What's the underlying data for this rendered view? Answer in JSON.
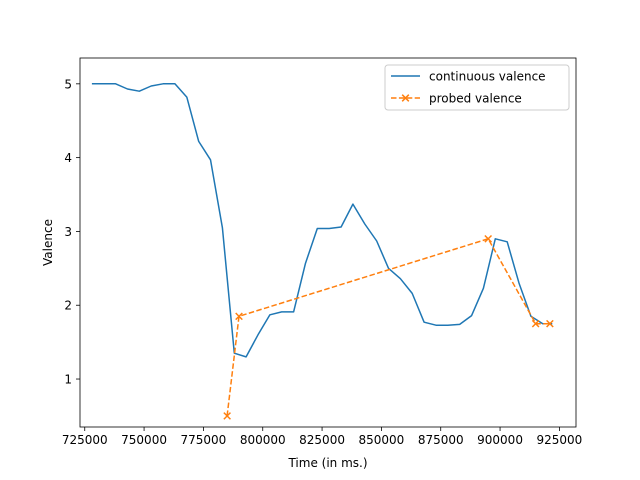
{
  "chart_data": {
    "type": "line",
    "xlabel": "Time (in ms.)",
    "ylabel": "Valence",
    "xlim": [
      723000,
      932000
    ],
    "ylim": [
      0.35,
      5.35
    ],
    "x_ticks": [
      725000,
      750000,
      775000,
      800000,
      825000,
      850000,
      875000,
      900000,
      925000
    ],
    "x_tick_labels": [
      "725000",
      "750000",
      "775000",
      "800000",
      "825000",
      "850000",
      "875000",
      "900000",
      "925000"
    ],
    "y_ticks": [
      1,
      2,
      3,
      4,
      5
    ],
    "y_tick_labels": [
      "1",
      "2",
      "3",
      "4",
      "5"
    ],
    "grid": false,
    "legend_position": "top-right",
    "series": [
      {
        "name": "continuous valence",
        "color": "#1f77b4",
        "style": "solid",
        "marker": "none",
        "x": [
          728000,
          733000,
          738000,
          743000,
          748000,
          753000,
          758000,
          763000,
          768000,
          773000,
          778000,
          783000,
          788000,
          793000,
          798000,
          803000,
          808000,
          813000,
          818000,
          823000,
          828000,
          833000,
          838000,
          843000,
          848000,
          853000,
          858000,
          863000,
          868000,
          873000,
          878000,
          883000,
          888000,
          893000,
          898000,
          903000,
          908000,
          913000,
          918000,
          922000
        ],
        "y": [
          5.0,
          5.0,
          5.0,
          4.93,
          4.9,
          4.97,
          5.0,
          5.0,
          4.82,
          4.22,
          3.97,
          3.05,
          1.35,
          1.3,
          1.6,
          1.87,
          1.91,
          1.91,
          2.57,
          3.04,
          3.04,
          3.06,
          3.37,
          3.1,
          2.87,
          2.5,
          2.36,
          2.16,
          1.77,
          1.73,
          1.73,
          1.74,
          1.86,
          2.23,
          2.9,
          2.86,
          2.3,
          1.85,
          1.75,
          1.75
        ]
      },
      {
        "name": "probed valence",
        "color": "#ff7f0e",
        "style": "dashed",
        "marker": "x",
        "x": [
          785000,
          790000,
          895000,
          915000,
          921000
        ],
        "y": [
          0.5,
          1.85,
          2.9,
          1.75,
          1.75
        ]
      }
    ]
  }
}
